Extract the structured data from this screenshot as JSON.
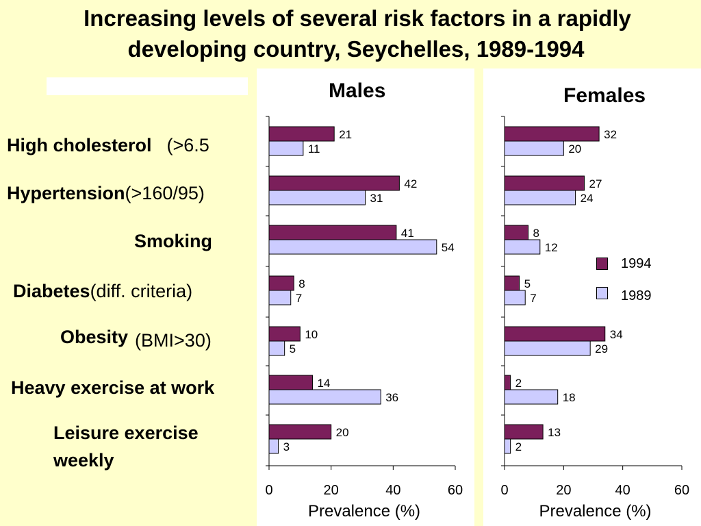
{
  "slide": {
    "title_line1": "Increasing levels of several risk factors in a rapidly",
    "title_line2": "developing country, Seychelles, 1989-1994"
  },
  "risk_factors": [
    {
      "name": "High cholesterol",
      "criteria": "(>6.5"
    },
    {
      "name": "Hypertension",
      "criteria": "(>160/95)"
    },
    {
      "name": "Smoking",
      "criteria": ""
    },
    {
      "name": "Diabetes",
      "criteria": "(diff. criteria)"
    },
    {
      "name": "Obesity",
      "criteria": "(BMI>30)"
    },
    {
      "name": "Heavy exercise at work",
      "criteria": ""
    },
    {
      "name": "Leisure exercise",
      "name2": "weekly",
      "criteria": ""
    }
  ],
  "colors": {
    "y1994": "#7b1f5b",
    "y1989": "#ccccff",
    "background": "#ffffcc"
  },
  "chart_data": [
    {
      "type": "bar",
      "title": "Males",
      "categories": [
        "High cholesterol",
        "Hypertension",
        "Smoking",
        "Diabetes",
        "Obesity",
        "Heavy exercise at work",
        "Leisure exercise weekly"
      ],
      "series": [
        {
          "name": "1994",
          "values": [
            21,
            42,
            41,
            8,
            10,
            14,
            20
          ]
        },
        {
          "name": "1989",
          "values": [
            11,
            31,
            54,
            7,
            5,
            36,
            3
          ]
        }
      ],
      "xlabel": "Prevalence (%)",
      "xlim": [
        0,
        60
      ],
      "xticks": [
        "0",
        "20",
        "40",
        "60"
      ],
      "orientation": "horizontal"
    },
    {
      "type": "bar",
      "title": "Females",
      "categories": [
        "High cholesterol",
        "Hypertension",
        "Smoking",
        "Diabetes",
        "Obesity",
        "Heavy exercise at work",
        "Leisure exercise weekly"
      ],
      "series": [
        {
          "name": "1994",
          "values": [
            32,
            27,
            8,
            5,
            34,
            2,
            13
          ]
        },
        {
          "name": "1989",
          "values": [
            20,
            24,
            12,
            7,
            29,
            18,
            2
          ]
        }
      ],
      "xlabel": "Prevalence (%)",
      "xlim": [
        0,
        60
      ],
      "xticks": [
        "0",
        "20",
        "40",
        "60"
      ],
      "orientation": "horizontal",
      "legend": {
        "placement": "right",
        "entries": [
          "1994",
          "1989"
        ]
      }
    }
  ]
}
